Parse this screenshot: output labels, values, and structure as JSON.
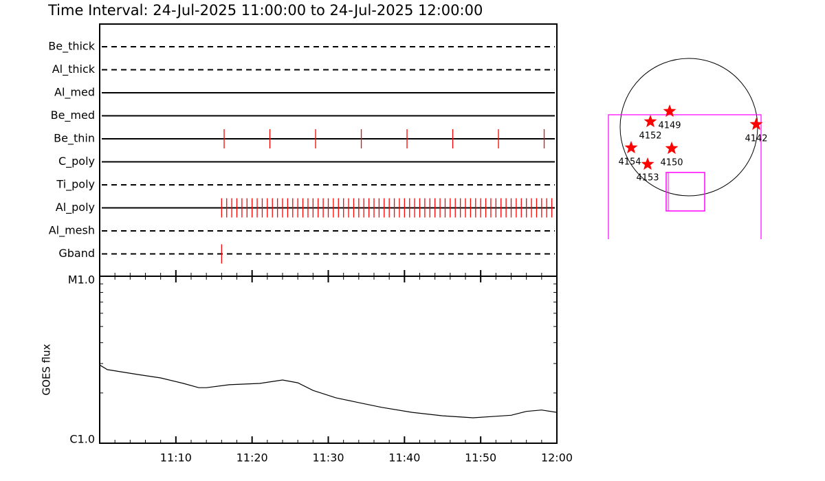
{
  "title": "Time Interval: 24-Jul-2025 11:00:00 to 24-Jul-2025 12:00:00",
  "chart_data": [
    {
      "type": "timeline",
      "categories": [
        "Be_thick",
        "Al_thick",
        "Al_med",
        "Be_med",
        "Be_thin",
        "C_poly",
        "Ti_poly",
        "Al_poly",
        "Al_mesh",
        "Gband"
      ],
      "line_styles": [
        "dashed",
        "dashed",
        "solid",
        "solid",
        "solid",
        "solid",
        "dashed",
        "solid",
        "dashed",
        "dashed"
      ],
      "color": "#ff0000",
      "xlim": [
        "11:00:00",
        "12:00:00"
      ],
      "observations": [
        [],
        [],
        [],
        [],
        [
          "11:16:20",
          "11:22:20",
          "11:28:20",
          "11:34:20",
          "11:40:20",
          "11:46:20",
          "11:52:20",
          "11:58:20"
        ],
        [],
        [],
        [
          "11:16:00",
          "11:16:40",
          "11:17:20",
          "11:18:00",
          "11:18:40",
          "11:19:20",
          "11:20:00",
          "11:20:40",
          "11:21:20",
          "11:22:00",
          "11:22:40",
          "11:23:20",
          "11:24:00",
          "11:24:40",
          "11:25:20",
          "11:26:00",
          "11:26:40",
          "11:27:20",
          "11:28:00",
          "11:28:40",
          "11:29:20",
          "11:30:00",
          "11:30:40",
          "11:31:20",
          "11:32:00",
          "11:32:40",
          "11:33:20",
          "11:34:00",
          "11:34:40",
          "11:35:20",
          "11:36:00",
          "11:36:40",
          "11:37:20",
          "11:38:00",
          "11:38:40",
          "11:39:20",
          "11:40:00",
          "11:40:40",
          "11:41:20",
          "11:42:00",
          "11:42:40",
          "11:43:20",
          "11:44:00",
          "11:44:40",
          "11:45:20",
          "11:46:00",
          "11:46:40",
          "11:47:20",
          "11:48:00",
          "11:48:40",
          "11:49:20",
          "11:50:00",
          "11:50:40",
          "11:51:20",
          "11:52:00",
          "11:52:40",
          "11:53:20",
          "11:54:00",
          "11:54:40",
          "11:55:20",
          "11:56:00",
          "11:56:40",
          "11:57:20",
          "11:58:00",
          "11:58:40",
          "11:59:20"
        ],
        [],
        [
          "11:16:00"
        ]
      ]
    },
    {
      "type": "line",
      "y_label": "GOES flux",
      "color": "#000000",
      "log_scale": true,
      "x": [
        "11:00",
        "11:01",
        "11:05",
        "11:08",
        "11:11",
        "11:13",
        "11:14",
        "11:17",
        "11:21",
        "11:24",
        "11:26",
        "11:28",
        "11:31",
        "11:34",
        "11:37",
        "11:41",
        "11:45",
        "11:49",
        "11:52",
        "11:54",
        "11:56",
        "11:58",
        "12:00"
      ],
      "values": [
        2.94e-06,
        2.76e-06,
        2.58e-06,
        2.46e-06,
        2.28e-06,
        2.15e-06,
        2.15e-06,
        2.24e-06,
        2.28e-06,
        2.39e-06,
        2.3e-06,
        2.07e-06,
        1.87e-06,
        1.75e-06,
        1.64e-06,
        1.53e-06,
        1.46e-06,
        1.42e-06,
        1.45e-06,
        1.47e-06,
        1.55e-06,
        1.58e-06,
        1.53e-06
      ],
      "xlim": [
        "11:00",
        "12:00"
      ],
      "xticks": [
        "11:10",
        "11:20",
        "11:30",
        "11:40",
        "11:50",
        "12:00"
      ],
      "xticks_minor": [
        "11:02",
        "11:04",
        "11:06",
        "11:08",
        "11:12",
        "11:14",
        "11:16",
        "11:18",
        "11:22",
        "11:24",
        "11:26",
        "11:28",
        "11:32",
        "11:34",
        "11:36",
        "11:38",
        "11:42",
        "11:44",
        "11:46",
        "11:48",
        "11:52",
        "11:54",
        "11:56",
        "11:58"
      ],
      "ylim": [
        1e-06,
        1e-05
      ],
      "yticks": [
        {
          "value": 1e-06,
          "label": "C1.0"
        },
        {
          "value": 1e-05,
          "label": "M1.0"
        }
      ],
      "yticks_minor": [
        2e-06,
        3e-06,
        4e-06,
        5e-06,
        6e-06,
        7e-06,
        8e-06,
        9e-06
      ]
    }
  ],
  "regions": [
    {
      "label": "4149"
    },
    {
      "label": "4152"
    },
    {
      "label": "4142"
    },
    {
      "label": "4154"
    },
    {
      "label": "4150"
    },
    {
      "label": "4153"
    }
  ],
  "region_color": "#ff0000"
}
